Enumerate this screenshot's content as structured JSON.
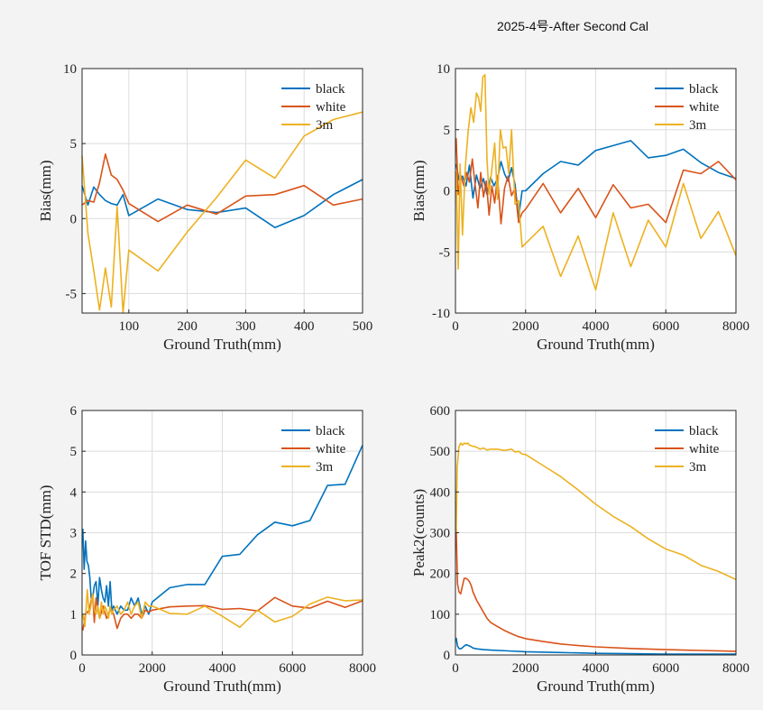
{
  "figure_title": "2025-4号-After Second Cal",
  "colors": {
    "black": "#0072BD",
    "white": "#D95319",
    "3m": "#EDB120"
  },
  "chart_data": [
    {
      "type": "line",
      "xlabel": "Ground Truth(mm)",
      "ylabel": "Bias(mm)",
      "xlim": [
        20,
        500
      ],
      "ylim": [
        -6.3,
        10
      ],
      "xticks": [
        100,
        200,
        300,
        400,
        500
      ],
      "xtick_labels": [
        "100",
        "200",
        "300",
        "400",
        "500"
      ],
      "yticks": [
        -5,
        0,
        5,
        10
      ],
      "ytick_labels": [
        "-5",
        "0",
        "5",
        "10"
      ],
      "grid": true,
      "legend": "top-right",
      "series": [
        {
          "name": "black",
          "x": [
            20,
            30,
            40,
            50,
            60,
            70,
            80,
            90,
            100,
            150,
            200,
            250,
            300,
            350,
            400,
            450,
            500
          ],
          "y": [
            2.2,
            0.9,
            2.1,
            1.6,
            1.2,
            1.0,
            0.9,
            1.6,
            0.2,
            1.3,
            0.6,
            0.4,
            0.7,
            -0.6,
            0.2,
            1.6,
            2.6
          ]
        },
        {
          "name": "white",
          "x": [
            20,
            30,
            40,
            50,
            60,
            70,
            80,
            90,
            100,
            150,
            200,
            250,
            300,
            350,
            400,
            450,
            500
          ],
          "y": [
            0.9,
            1.2,
            1.1,
            2.4,
            4.3,
            2.9,
            2.6,
            1.9,
            1.0,
            -0.2,
            0.9,
            0.3,
            1.5,
            1.6,
            2.2,
            0.9,
            1.3
          ]
        },
        {
          "name": "3m",
          "x": [
            20,
            30,
            40,
            50,
            60,
            70,
            80,
            90,
            100,
            150,
            200,
            250,
            300,
            350,
            400,
            450,
            500
          ],
          "y": [
            4.2,
            -1.0,
            -3.5,
            -6.1,
            -3.3,
            -5.9,
            0.8,
            -6.3,
            -2.1,
            -3.5,
            -0.9,
            1.4,
            3.9,
            2.7,
            5.5,
            6.6,
            7.1
          ]
        }
      ]
    },
    {
      "type": "line",
      "xlabel": "Ground Truth(mm)",
      "ylabel": "Bias(mm)",
      "xlim": [
        0,
        8000
      ],
      "ylim": [
        -10,
        10
      ],
      "xticks": [
        0,
        2000,
        4000,
        6000,
        8000
      ],
      "xtick_labels": [
        "0",
        "2000",
        "4000",
        "6000",
        "8000"
      ],
      "yticks": [
        -10,
        -5,
        0,
        5,
        10
      ],
      "ytick_labels": [
        "-10",
        "-5",
        "0",
        "5",
        "10"
      ],
      "grid": true,
      "legend": "top-right",
      "series": [
        {
          "name": "black",
          "x": [
            20,
            100,
            200,
            300,
            400,
            500,
            600,
            700,
            800,
            900,
            1000,
            1100,
            1200,
            1300,
            1400,
            1500,
            1600,
            1700,
            1800,
            1900,
            2000,
            2500,
            3000,
            3500,
            4000,
            4500,
            5000,
            5500,
            6000,
            6500,
            7000,
            7500,
            8000
          ],
          "y": [
            2.2,
            0.9,
            1.2,
            0.4,
            2.1,
            -0.6,
            1.3,
            0.2,
            1.0,
            -0.3,
            1.1,
            0.4,
            1.0,
            2.4,
            1.4,
            0.8,
            1.9,
            0.5,
            -2.2,
            0.0,
            0.0,
            1.4,
            2.4,
            2.1,
            3.3,
            3.7,
            4.1,
            2.7,
            2.9,
            3.4,
            2.3,
            1.5,
            1.0
          ]
        },
        {
          "name": "white",
          "x": [
            20,
            80,
            160,
            240,
            320,
            400,
            480,
            560,
            640,
            720,
            800,
            880,
            960,
            1040,
            1120,
            1200,
            1300,
            1400,
            1500,
            1600,
            1700,
            1800,
            1900,
            2000,
            2500,
            3000,
            3500,
            4000,
            4500,
            5000,
            5500,
            6000,
            6500,
            7000,
            7500,
            8000
          ],
          "y": [
            4.3,
            -0.3,
            1.2,
            0.4,
            1.5,
            0.7,
            2.6,
            0.5,
            -1.4,
            1.5,
            -0.5,
            0.8,
            -2.0,
            0.4,
            -1.0,
            1.2,
            -2.7,
            0.2,
            1.2,
            -0.4,
            0.2,
            -2.6,
            -1.8,
            -1.5,
            0.6,
            -1.8,
            0.2,
            -2.2,
            0.5,
            -1.4,
            -1.1,
            -2.6,
            1.7,
            1.4,
            2.4,
            0.9
          ]
        },
        {
          "name": "3m",
          "x": [
            20,
            80,
            130,
            200,
            280,
            360,
            440,
            520,
            600,
            660,
            720,
            780,
            840,
            900,
            960,
            1040,
            1120,
            1200,
            1280,
            1360,
            1440,
            1520,
            1600,
            1700,
            1800,
            1900,
            2000,
            2500,
            3000,
            3500,
            4000,
            4500,
            5000,
            5500,
            6000,
            6500,
            7000,
            7500,
            8000
          ],
          "y": [
            1.6,
            -6.4,
            2.2,
            -3.6,
            1.9,
            4.8,
            6.8,
            5.6,
            8.0,
            7.6,
            6.5,
            9.3,
            9.5,
            2.5,
            -0.3,
            1.8,
            3.9,
            -0.7,
            5.0,
            3.5,
            3.6,
            1.4,
            5.0,
            -1.1,
            -0.8,
            -4.6,
            -4.3,
            -2.9,
            -7.0,
            -3.7,
            -8.1,
            -1.8,
            -6.2,
            -2.4,
            -4.6,
            0.6,
            -3.9,
            -1.7,
            -5.3
          ]
        }
      ]
    },
    {
      "type": "line",
      "xlabel": "Ground Truth(mm)",
      "ylabel": "TOF STD(mm)",
      "xlim": [
        0,
        8000
      ],
      "ylim": [
        0,
        6
      ],
      "xticks": [
        0,
        2000,
        4000,
        6000,
        8000
      ],
      "xtick_labels": [
        "0",
        "2000",
        "4000",
        "6000",
        "8000"
      ],
      "yticks": [
        0,
        1,
        2,
        3,
        4,
        5,
        6
      ],
      "ytick_labels": [
        "0",
        "1",
        "2",
        "3",
        "4",
        "5",
        "6"
      ],
      "grid": true,
      "legend": "top-right",
      "series": [
        {
          "name": "black",
          "x": [
            20,
            60,
            100,
            140,
            180,
            220,
            260,
            300,
            350,
            400,
            450,
            500,
            550,
            600,
            650,
            700,
            750,
            800,
            850,
            900,
            1000,
            1100,
            1200,
            1300,
            1400,
            1500,
            1600,
            1700,
            1800,
            1900,
            2000,
            2500,
            3000,
            3500,
            4000,
            4500,
            5000,
            5500,
            6000,
            6500,
            7000,
            7500,
            8000
          ],
          "y": [
            3.1,
            2.1,
            2.8,
            2.3,
            2.2,
            1.9,
            1.4,
            1.4,
            1.7,
            1.8,
            1.2,
            1.9,
            1.6,
            1.4,
            1.3,
            1.7,
            1.2,
            1.8,
            1.1,
            1.2,
            1.0,
            1.2,
            1.1,
            1.1,
            1.4,
            1.2,
            1.4,
            1.0,
            1.2,
            1.0,
            1.3,
            1.65,
            1.73,
            1.73,
            2.42,
            2.47,
            2.95,
            3.26,
            3.17,
            3.3,
            4.16,
            4.19,
            5.15
          ]
        },
        {
          "name": "white",
          "x": [
            20,
            100,
            200,
            300,
            350,
            400,
            500,
            600,
            700,
            800,
            900,
            1000,
            1100,
            1200,
            1300,
            1400,
            1500,
            1600,
            1700,
            1800,
            1900,
            2000,
            2500,
            3000,
            3500,
            4000,
            4500,
            5000,
            5500,
            6000,
            6500,
            7000,
            7500,
            8000
          ],
          "y": [
            0.6,
            1.0,
            1.1,
            1.5,
            0.8,
            1.4,
            0.9,
            1.2,
            0.9,
            1.1,
            1.0,
            0.65,
            0.9,
            1.0,
            1.0,
            0.9,
            1.0,
            1.0,
            0.9,
            1.1,
            1.05,
            1.1,
            1.18,
            1.2,
            1.21,
            1.12,
            1.14,
            1.08,
            1.41,
            1.2,
            1.15,
            1.32,
            1.17,
            1.33
          ]
        },
        {
          "name": "3m",
          "x": [
            20,
            80,
            150,
            200,
            250,
            300,
            350,
            400,
            450,
            500,
            550,
            600,
            650,
            700,
            750,
            800,
            850,
            900,
            1000,
            1100,
            1200,
            1300,
            1400,
            1500,
            1600,
            1700,
            1800,
            1900,
            2000,
            2500,
            3000,
            3500,
            4000,
            4500,
            5000,
            5500,
            6000,
            6500,
            7000,
            7500,
            8000
          ],
          "y": [
            1.0,
            0.7,
            1.6,
            1.0,
            1.2,
            1.5,
            1.1,
            1.0,
            1.2,
            0.9,
            1.3,
            1.0,
            1.2,
            1.1,
            0.9,
            1.2,
            1.0,
            1.1,
            1.2,
            1.0,
            1.1,
            1.3,
            1.0,
            1.2,
            1.3,
            0.9,
            1.3,
            1.2,
            1.2,
            1.02,
            1.0,
            1.2,
            0.95,
            0.68,
            1.1,
            0.81,
            0.95,
            1.25,
            1.42,
            1.33,
            1.35
          ]
        }
      ]
    },
    {
      "type": "line",
      "xlabel": "Ground Truth(mm)",
      "ylabel": "Peak2(counts)",
      "xlim": [
        0,
        8000
      ],
      "ylim": [
        0,
        600
      ],
      "xticks": [
        0,
        2000,
        4000,
        6000,
        8000
      ],
      "xtick_labels": [
        "0",
        "2000",
        "4000",
        "6000",
        "8000"
      ],
      "yticks": [
        0,
        100,
        200,
        300,
        400,
        500,
        600
      ],
      "ytick_labels": [
        "0",
        "100",
        "200",
        "300",
        "400",
        "500",
        "600"
      ],
      "grid": true,
      "legend": "top-right",
      "series": [
        {
          "name": "black",
          "x": [
            20,
            60,
            100,
            150,
            200,
            250,
            300,
            350,
            400,
            450,
            500,
            600,
            800,
            1000,
            1500,
            2000,
            3000,
            4000,
            5000,
            6000,
            7000,
            8000
          ],
          "y": [
            42,
            22,
            16,
            15,
            18,
            22,
            25,
            24,
            22,
            20,
            17,
            15,
            13,
            12,
            10,
            8,
            6,
            4,
            3,
            2,
            2,
            2
          ]
        },
        {
          "name": "white",
          "x": [
            20,
            60,
            100,
            150,
            200,
            250,
            300,
            350,
            400,
            450,
            500,
            600,
            700,
            800,
            900,
            1000,
            1200,
            1400,
            1600,
            1800,
            2000,
            2500,
            3000,
            3500,
            4000,
            5000,
            6000,
            7000,
            8000
          ],
          "y": [
            310,
            175,
            155,
            150,
            170,
            188,
            188,
            185,
            180,
            170,
            155,
            135,
            120,
            105,
            90,
            80,
            70,
            60,
            52,
            45,
            40,
            33,
            27,
            23,
            20,
            16,
            13,
            11,
            9
          ]
        },
        {
          "name": "3m",
          "x": [
            20,
            50,
            100,
            150,
            200,
            250,
            300,
            350,
            400,
            500,
            600,
            700,
            800,
            900,
            1000,
            1200,
            1400,
            1600,
            1700,
            1800,
            1900,
            2000,
            2500,
            3000,
            3500,
            4000,
            4500,
            5000,
            5500,
            6000,
            6500,
            7000,
            7500,
            8000
          ],
          "y": [
            300,
            460,
            510,
            520,
            515,
            520,
            518,
            520,
            515,
            512,
            510,
            505,
            508,
            503,
            505,
            505,
            502,
            505,
            498,
            500,
            493,
            492,
            465,
            438,
            405,
            370,
            340,
            315,
            285,
            260,
            245,
            220,
            205,
            185
          ]
        }
      ]
    }
  ]
}
